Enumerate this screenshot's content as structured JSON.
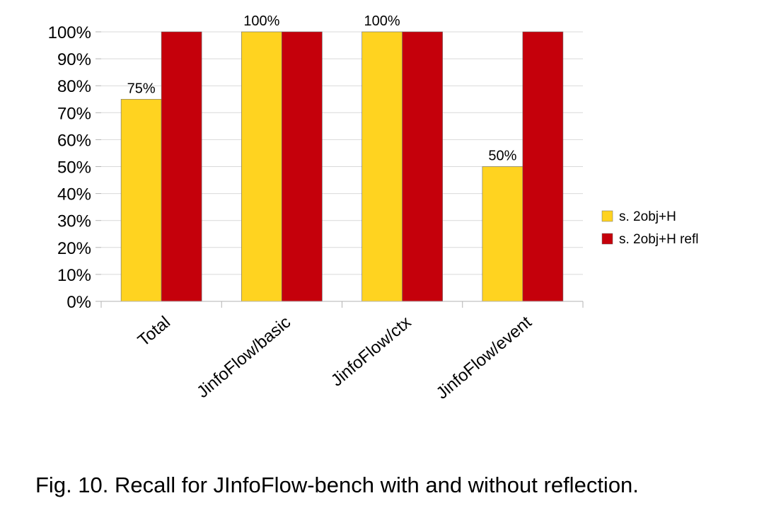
{
  "caption": "Fig. 10.  Recall for JInfoFlow-bench with and without reflection.",
  "chart_data": {
    "type": "bar",
    "categories": [
      "Total",
      "JinfoFlow/basic",
      "JinfoFlow/ctx",
      "JinfoFlow/event"
    ],
    "series": [
      {
        "name": "s. 2obj+H",
        "color": "#FFD320",
        "values": [
          75,
          100,
          100,
          50
        ],
        "labels": [
          "75%",
          "100%",
          "100%",
          "50%"
        ]
      },
      {
        "name": "s. 2obj+H refl",
        "color": "#C5000B",
        "values": [
          100,
          100,
          100,
          100
        ],
        "labels": null
      }
    ],
    "ylim": [
      0,
      100
    ],
    "yticks": [
      0,
      10,
      20,
      30,
      40,
      50,
      60,
      70,
      80,
      90,
      100
    ],
    "ytick_labels": [
      "0%",
      "10%",
      "20%",
      "30%",
      "40%",
      "50%",
      "60%",
      "70%",
      "80%",
      "90%",
      "100%"
    ],
    "grid": true,
    "legend_position": "right"
  }
}
